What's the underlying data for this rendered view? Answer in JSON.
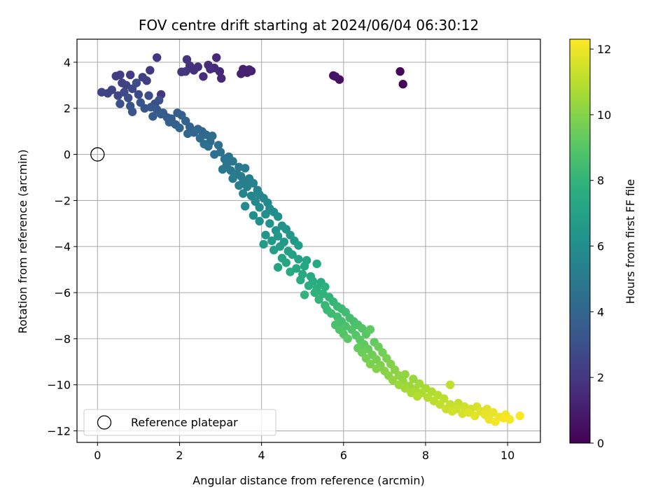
{
  "chart_data": {
    "type": "scatter",
    "title": "FOV centre drift starting at 2024/06/04 06:30:12",
    "xlabel": "Angular distance from reference (arcmin)",
    "ylabel": "Rotation from reference (arcmin)",
    "colorbar_label": "Hours from first FF file",
    "xlim": [
      -0.5,
      10.8
    ],
    "ylim": [
      -12.5,
      5.0
    ],
    "xticks": [
      0,
      2,
      4,
      6,
      8,
      10
    ],
    "xtick_labels": [
      "0",
      "2",
      "4",
      "6",
      "8",
      "10"
    ],
    "yticks": [
      4,
      2,
      0,
      -2,
      -4,
      -6,
      -8,
      -10,
      -12
    ],
    "ytick_labels": [
      "4",
      "2",
      "0",
      "−2",
      "−4",
      "−6",
      "−8",
      "−10",
      "−12"
    ],
    "colorbar_range": [
      0,
      12.3
    ],
    "colorbar_ticks": [
      0,
      2,
      4,
      6,
      8,
      10,
      12
    ],
    "colorbar_tick_labels": [
      "0",
      "2",
      "4",
      "6",
      "8",
      "10",
      "12"
    ],
    "colormap": "viridis",
    "grid": true,
    "legend": {
      "label": "Reference platepar",
      "placement": "lower-left"
    },
    "reference_point": {
      "x": 0,
      "y": 0
    },
    "points": [
      [
        7.45,
        3.05,
        0.1
      ],
      [
        7.38,
        3.6,
        0.2
      ],
      [
        5.9,
        3.25,
        0.4
      ],
      [
        5.75,
        3.42,
        0.6
      ],
      [
        5.8,
        3.38,
        0.7
      ],
      [
        3.75,
        3.62,
        1.0
      ],
      [
        3.65,
        3.55,
        1.05
      ],
      [
        3.55,
        3.7,
        1.1
      ],
      [
        3.5,
        3.5,
        1.15
      ],
      [
        3.7,
        3.68,
        1.2
      ],
      [
        3.02,
        3.3,
        1.3
      ],
      [
        2.98,
        3.6,
        1.35
      ],
      [
        2.9,
        4.2,
        1.4
      ],
      [
        2.85,
        3.75,
        1.45
      ],
      [
        2.75,
        3.7,
        1.5
      ],
      [
        2.7,
        3.88,
        1.55
      ],
      [
        2.58,
        3.38,
        1.6
      ],
      [
        2.45,
        3.8,
        1.65
      ],
      [
        2.35,
        3.65,
        1.7
      ],
      [
        2.25,
        3.85,
        1.75
      ],
      [
        2.18,
        4.12,
        1.8
      ],
      [
        2.15,
        3.6,
        1.85
      ],
      [
        2.05,
        3.58,
        1.9
      ],
      [
        1.45,
        4.2,
        1.95
      ],
      [
        1.28,
        3.65,
        2.0
      ],
      [
        1.55,
        2.6,
        2.05
      ],
      [
        0.8,
        3.45,
        2.1
      ],
      [
        0.55,
        3.45,
        2.15
      ],
      [
        0.45,
        3.4,
        2.2
      ],
      [
        1.1,
        3.35,
        2.25
      ],
      [
        1.2,
        3.2,
        2.3
      ],
      [
        0.6,
        3.1,
        2.35
      ],
      [
        0.7,
        3.0,
        2.4
      ],
      [
        0.35,
        2.8,
        2.45
      ],
      [
        0.25,
        2.65,
        2.5
      ],
      [
        0.1,
        2.7,
        2.55
      ],
      [
        0.5,
        2.55,
        2.6
      ],
      [
        0.85,
        2.85,
        2.65
      ],
      [
        1.0,
        2.6,
        2.7
      ],
      [
        0.65,
        2.7,
        2.75
      ],
      [
        0.95,
        3.1,
        2.8
      ],
      [
        0.75,
        2.45,
        2.85
      ],
      [
        1.25,
        2.55,
        2.9
      ],
      [
        1.4,
        2.2,
        2.95
      ],
      [
        1.5,
        2.35,
        3.0
      ],
      [
        0.55,
        2.2,
        3.05
      ],
      [
        0.8,
        2.1,
        3.1
      ],
      [
        0.85,
        1.85,
        3.15
      ],
      [
        1.05,
        2.25,
        3.2
      ],
      [
        1.15,
        2.0,
        3.25
      ],
      [
        1.3,
        2.05,
        3.3
      ],
      [
        1.45,
        1.95,
        3.35
      ],
      [
        1.55,
        1.75,
        3.4
      ],
      [
        1.35,
        1.65,
        3.45
      ],
      [
        1.7,
        1.6,
        3.5
      ],
      [
        1.6,
        1.8,
        3.55
      ],
      [
        1.8,
        1.55,
        3.6
      ],
      [
        1.95,
        1.8,
        3.65
      ],
      [
        1.75,
        1.4,
        3.7
      ],
      [
        2.05,
        1.7,
        3.75
      ],
      [
        1.9,
        1.3,
        3.8
      ],
      [
        2.15,
        1.45,
        3.85
      ],
      [
        2.25,
        1.2,
        3.9
      ],
      [
        2.0,
        1.15,
        3.95
      ],
      [
        2.35,
        0.95,
        4.0
      ],
      [
        2.45,
        1.1,
        4.05
      ],
      [
        2.2,
        0.9,
        4.1
      ],
      [
        2.55,
        1.0,
        4.15
      ],
      [
        2.65,
        0.85,
        4.2
      ],
      [
        2.5,
        0.7,
        4.25
      ],
      [
        2.75,
        0.55,
        4.3
      ],
      [
        2.8,
        0.8,
        4.35
      ],
      [
        2.95,
        0.4,
        4.4
      ],
      [
        2.6,
        0.45,
        4.45
      ],
      [
        2.7,
        0.35,
        4.5
      ],
      [
        3.0,
        0.1,
        4.55
      ],
      [
        2.85,
        0.0,
        4.6
      ],
      [
        3.1,
        -0.2,
        4.65
      ],
      [
        3.2,
        -0.1,
        4.7
      ],
      [
        3.15,
        -0.45,
        4.75
      ],
      [
        3.3,
        -0.3,
        4.8
      ],
      [
        3.05,
        -0.65,
        4.85
      ],
      [
        3.25,
        -0.7,
        4.9
      ],
      [
        3.45,
        -0.55,
        4.95
      ],
      [
        3.4,
        -0.85,
        5.0
      ],
      [
        3.5,
        -0.95,
        5.05
      ],
      [
        3.6,
        -0.6,
        5.1
      ],
      [
        3.3,
        -1.05,
        5.15
      ],
      [
        3.55,
        -1.2,
        5.2
      ],
      [
        3.7,
        -1.05,
        5.25
      ],
      [
        3.45,
        -1.35,
        5.3
      ],
      [
        3.65,
        -1.4,
        5.35
      ],
      [
        3.8,
        -1.25,
        5.4
      ],
      [
        3.9,
        -1.55,
        5.45
      ],
      [
        3.55,
        -1.7,
        5.5
      ],
      [
        3.75,
        -1.8,
        5.55
      ],
      [
        3.95,
        -1.75,
        5.6
      ],
      [
        4.05,
        -1.9,
        5.65
      ],
      [
        3.85,
        -2.05,
        5.7
      ],
      [
        4.15,
        -2.1,
        5.75
      ],
      [
        3.6,
        -2.25,
        5.8
      ],
      [
        3.95,
        -2.3,
        5.85
      ],
      [
        4.2,
        -2.35,
        5.9
      ],
      [
        4.3,
        -2.5,
        5.95
      ],
      [
        3.8,
        -2.65,
        6.0
      ],
      [
        4.1,
        -2.6,
        6.05
      ],
      [
        4.4,
        -2.7,
        6.1
      ],
      [
        3.95,
        -2.9,
        6.15
      ],
      [
        4.2,
        -3.0,
        6.2
      ],
      [
        4.5,
        -3.1,
        6.25
      ],
      [
        4.35,
        -3.3,
        6.3
      ],
      [
        4.6,
        -3.25,
        6.35
      ],
      [
        4.1,
        -3.5,
        6.4
      ],
      [
        4.4,
        -3.55,
        6.45
      ],
      [
        4.7,
        -3.5,
        6.5
      ],
      [
        4.25,
        -3.75,
        6.55
      ],
      [
        4.55,
        -3.8,
        6.6
      ],
      [
        4.8,
        -3.75,
        6.65
      ],
      [
        4.05,
        -3.9,
        6.7
      ],
      [
        4.45,
        -4.0,
        6.75
      ],
      [
        4.9,
        -3.95,
        6.8
      ],
      [
        4.3,
        -4.15,
        6.85
      ],
      [
        4.65,
        -4.2,
        6.9
      ],
      [
        4.75,
        -4.35,
        6.95
      ],
      [
        4.5,
        -4.5,
        7.0
      ],
      [
        4.9,
        -4.55,
        7.05
      ],
      [
        5.1,
        -4.6,
        7.1
      ],
      [
        4.6,
        -4.7,
        7.15
      ],
      [
        4.4,
        -4.9,
        7.2
      ],
      [
        4.85,
        -4.95,
        7.25
      ],
      [
        5.05,
        -4.85,
        7.3
      ],
      [
        5.35,
        -4.75,
        7.35
      ],
      [
        4.7,
        -5.1,
        7.4
      ],
      [
        5.0,
        -5.2,
        7.45
      ],
      [
        5.2,
        -5.3,
        7.5
      ],
      [
        4.95,
        -5.45,
        7.55
      ],
      [
        5.25,
        -5.5,
        7.6
      ],
      [
        5.45,
        -5.55,
        7.65
      ],
      [
        5.15,
        -5.7,
        7.7
      ],
      [
        5.35,
        -5.8,
        7.75
      ],
      [
        5.55,
        -5.75,
        7.8
      ],
      [
        5.3,
        -6.0,
        7.85
      ],
      [
        5.5,
        -6.05,
        7.9
      ],
      [
        5.05,
        -6.1,
        7.95
      ],
      [
        5.65,
        -6.2,
        8.0
      ],
      [
        5.4,
        -6.3,
        8.05
      ],
      [
        5.75,
        -6.4,
        8.1
      ],
      [
        5.55,
        -6.55,
        8.15
      ],
      [
        5.85,
        -6.6,
        8.2
      ],
      [
        5.6,
        -6.75,
        8.25
      ],
      [
        5.95,
        -6.7,
        8.3
      ],
      [
        5.7,
        -6.9,
        8.35
      ],
      [
        6.05,
        -6.85,
        8.4
      ],
      [
        5.85,
        -7.05,
        8.45
      ],
      [
        6.15,
        -7.1,
        8.5
      ],
      [
        5.95,
        -7.25,
        8.55
      ],
      [
        6.25,
        -7.25,
        8.6
      ],
      [
        5.8,
        -7.4,
        8.65
      ],
      [
        6.05,
        -7.45,
        8.7
      ],
      [
        6.35,
        -7.4,
        8.75
      ],
      [
        5.9,
        -7.6,
        8.8
      ],
      [
        6.2,
        -7.6,
        8.85
      ],
      [
        6.45,
        -7.55,
        8.9
      ],
      [
        6.0,
        -7.8,
        8.95
      ],
      [
        6.3,
        -7.85,
        9.0
      ],
      [
        6.55,
        -7.8,
        9.05
      ],
      [
        6.1,
        -8.0,
        9.1
      ],
      [
        6.4,
        -8.05,
        9.15
      ],
      [
        6.65,
        -7.6,
        9.2
      ],
      [
        6.5,
        -8.25,
        9.25
      ],
      [
        6.75,
        -8.15,
        9.3
      ],
      [
        6.35,
        -8.4,
        9.35
      ],
      [
        6.6,
        -8.45,
        9.4
      ],
      [
        6.85,
        -8.35,
        9.45
      ],
      [
        6.45,
        -8.6,
        9.5
      ],
      [
        6.7,
        -8.7,
        9.55
      ],
      [
        6.95,
        -8.6,
        9.6
      ],
      [
        6.55,
        -8.85,
        9.65
      ],
      [
        6.8,
        -8.9,
        9.7
      ],
      [
        7.05,
        -8.85,
        9.75
      ],
      [
        6.65,
        -9.1,
        9.8
      ],
      [
        6.9,
        -9.15,
        9.85
      ],
      [
        7.15,
        -9.1,
        9.9
      ],
      [
        6.8,
        -9.3,
        9.95
      ],
      [
        7.0,
        -9.4,
        10.0
      ],
      [
        7.25,
        -9.35,
        10.05
      ],
      [
        7.1,
        -9.6,
        10.1
      ],
      [
        7.35,
        -9.6,
        10.15
      ],
      [
        7.5,
        -9.55,
        10.2
      ],
      [
        7.2,
        -9.8,
        10.25
      ],
      [
        7.45,
        -9.85,
        10.3
      ],
      [
        7.7,
        -9.75,
        10.35
      ],
      [
        7.35,
        -10.0,
        10.4
      ],
      [
        7.6,
        -10.05,
        10.45
      ],
      [
        7.85,
        -9.95,
        10.5
      ],
      [
        7.5,
        -10.15,
        10.55
      ],
      [
        7.75,
        -10.2,
        10.6
      ],
      [
        8.0,
        -10.15,
        10.65
      ],
      [
        7.65,
        -10.35,
        10.7
      ],
      [
        7.9,
        -10.35,
        10.75
      ],
      [
        8.15,
        -10.3,
        10.8
      ],
      [
        7.8,
        -10.5,
        10.85
      ],
      [
        8.05,
        -10.55,
        10.9
      ],
      [
        8.3,
        -10.45,
        10.95
      ],
      [
        8.2,
        -10.7,
        11.0
      ],
      [
        8.45,
        -10.6,
        11.05
      ],
      [
        8.6,
        -10.0,
        11.1
      ],
      [
        8.35,
        -10.85,
        11.15
      ],
      [
        8.6,
        -10.85,
        11.2
      ],
      [
        8.8,
        -10.8,
        11.25
      ],
      [
        8.5,
        -11.05,
        11.3
      ],
      [
        8.75,
        -11.05,
        11.35
      ],
      [
        8.95,
        -10.95,
        11.4
      ],
      [
        8.65,
        -11.15,
        11.45
      ],
      [
        9.1,
        -11.05,
        11.5
      ],
      [
        8.9,
        -11.25,
        11.55
      ],
      [
        9.25,
        -10.95,
        11.6
      ],
      [
        9.05,
        -11.2,
        11.65
      ],
      [
        9.35,
        -11.15,
        11.7
      ],
      [
        9.5,
        -11.05,
        11.75
      ],
      [
        9.2,
        -11.35,
        11.8
      ],
      [
        9.45,
        -11.3,
        11.85
      ],
      [
        9.65,
        -11.2,
        11.9
      ],
      [
        9.55,
        -11.5,
        11.95
      ],
      [
        9.8,
        -11.4,
        12.0
      ],
      [
        9.95,
        -11.3,
        12.05
      ],
      [
        9.7,
        -11.6,
        12.1
      ],
      [
        10.05,
        -11.5,
        12.15
      ],
      [
        9.9,
        -11.45,
        12.2
      ],
      [
        10.3,
        -11.35,
        12.25
      ]
    ]
  }
}
